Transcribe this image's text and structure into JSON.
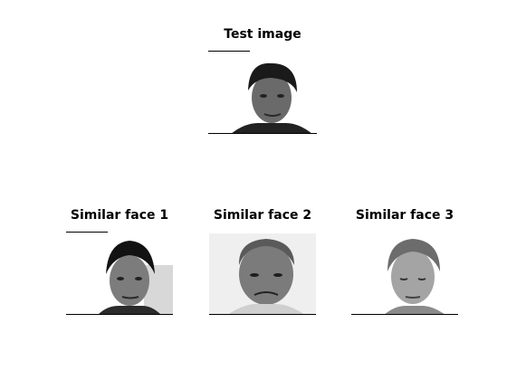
{
  "panels": {
    "test": {
      "title": "Test image"
    },
    "similar1": {
      "title": "Similar face 1"
    },
    "similar2": {
      "title": "Similar face 2"
    },
    "similar3": {
      "title": "Similar face 3"
    }
  },
  "colors": {
    "background": "#ffffff",
    "axis_line": "#000000"
  },
  "icons": {
    "test": "face-photo-icon",
    "similar1": "face-photo-icon",
    "similar2": "face-photo-icon",
    "similar3": "face-photo-icon"
  }
}
